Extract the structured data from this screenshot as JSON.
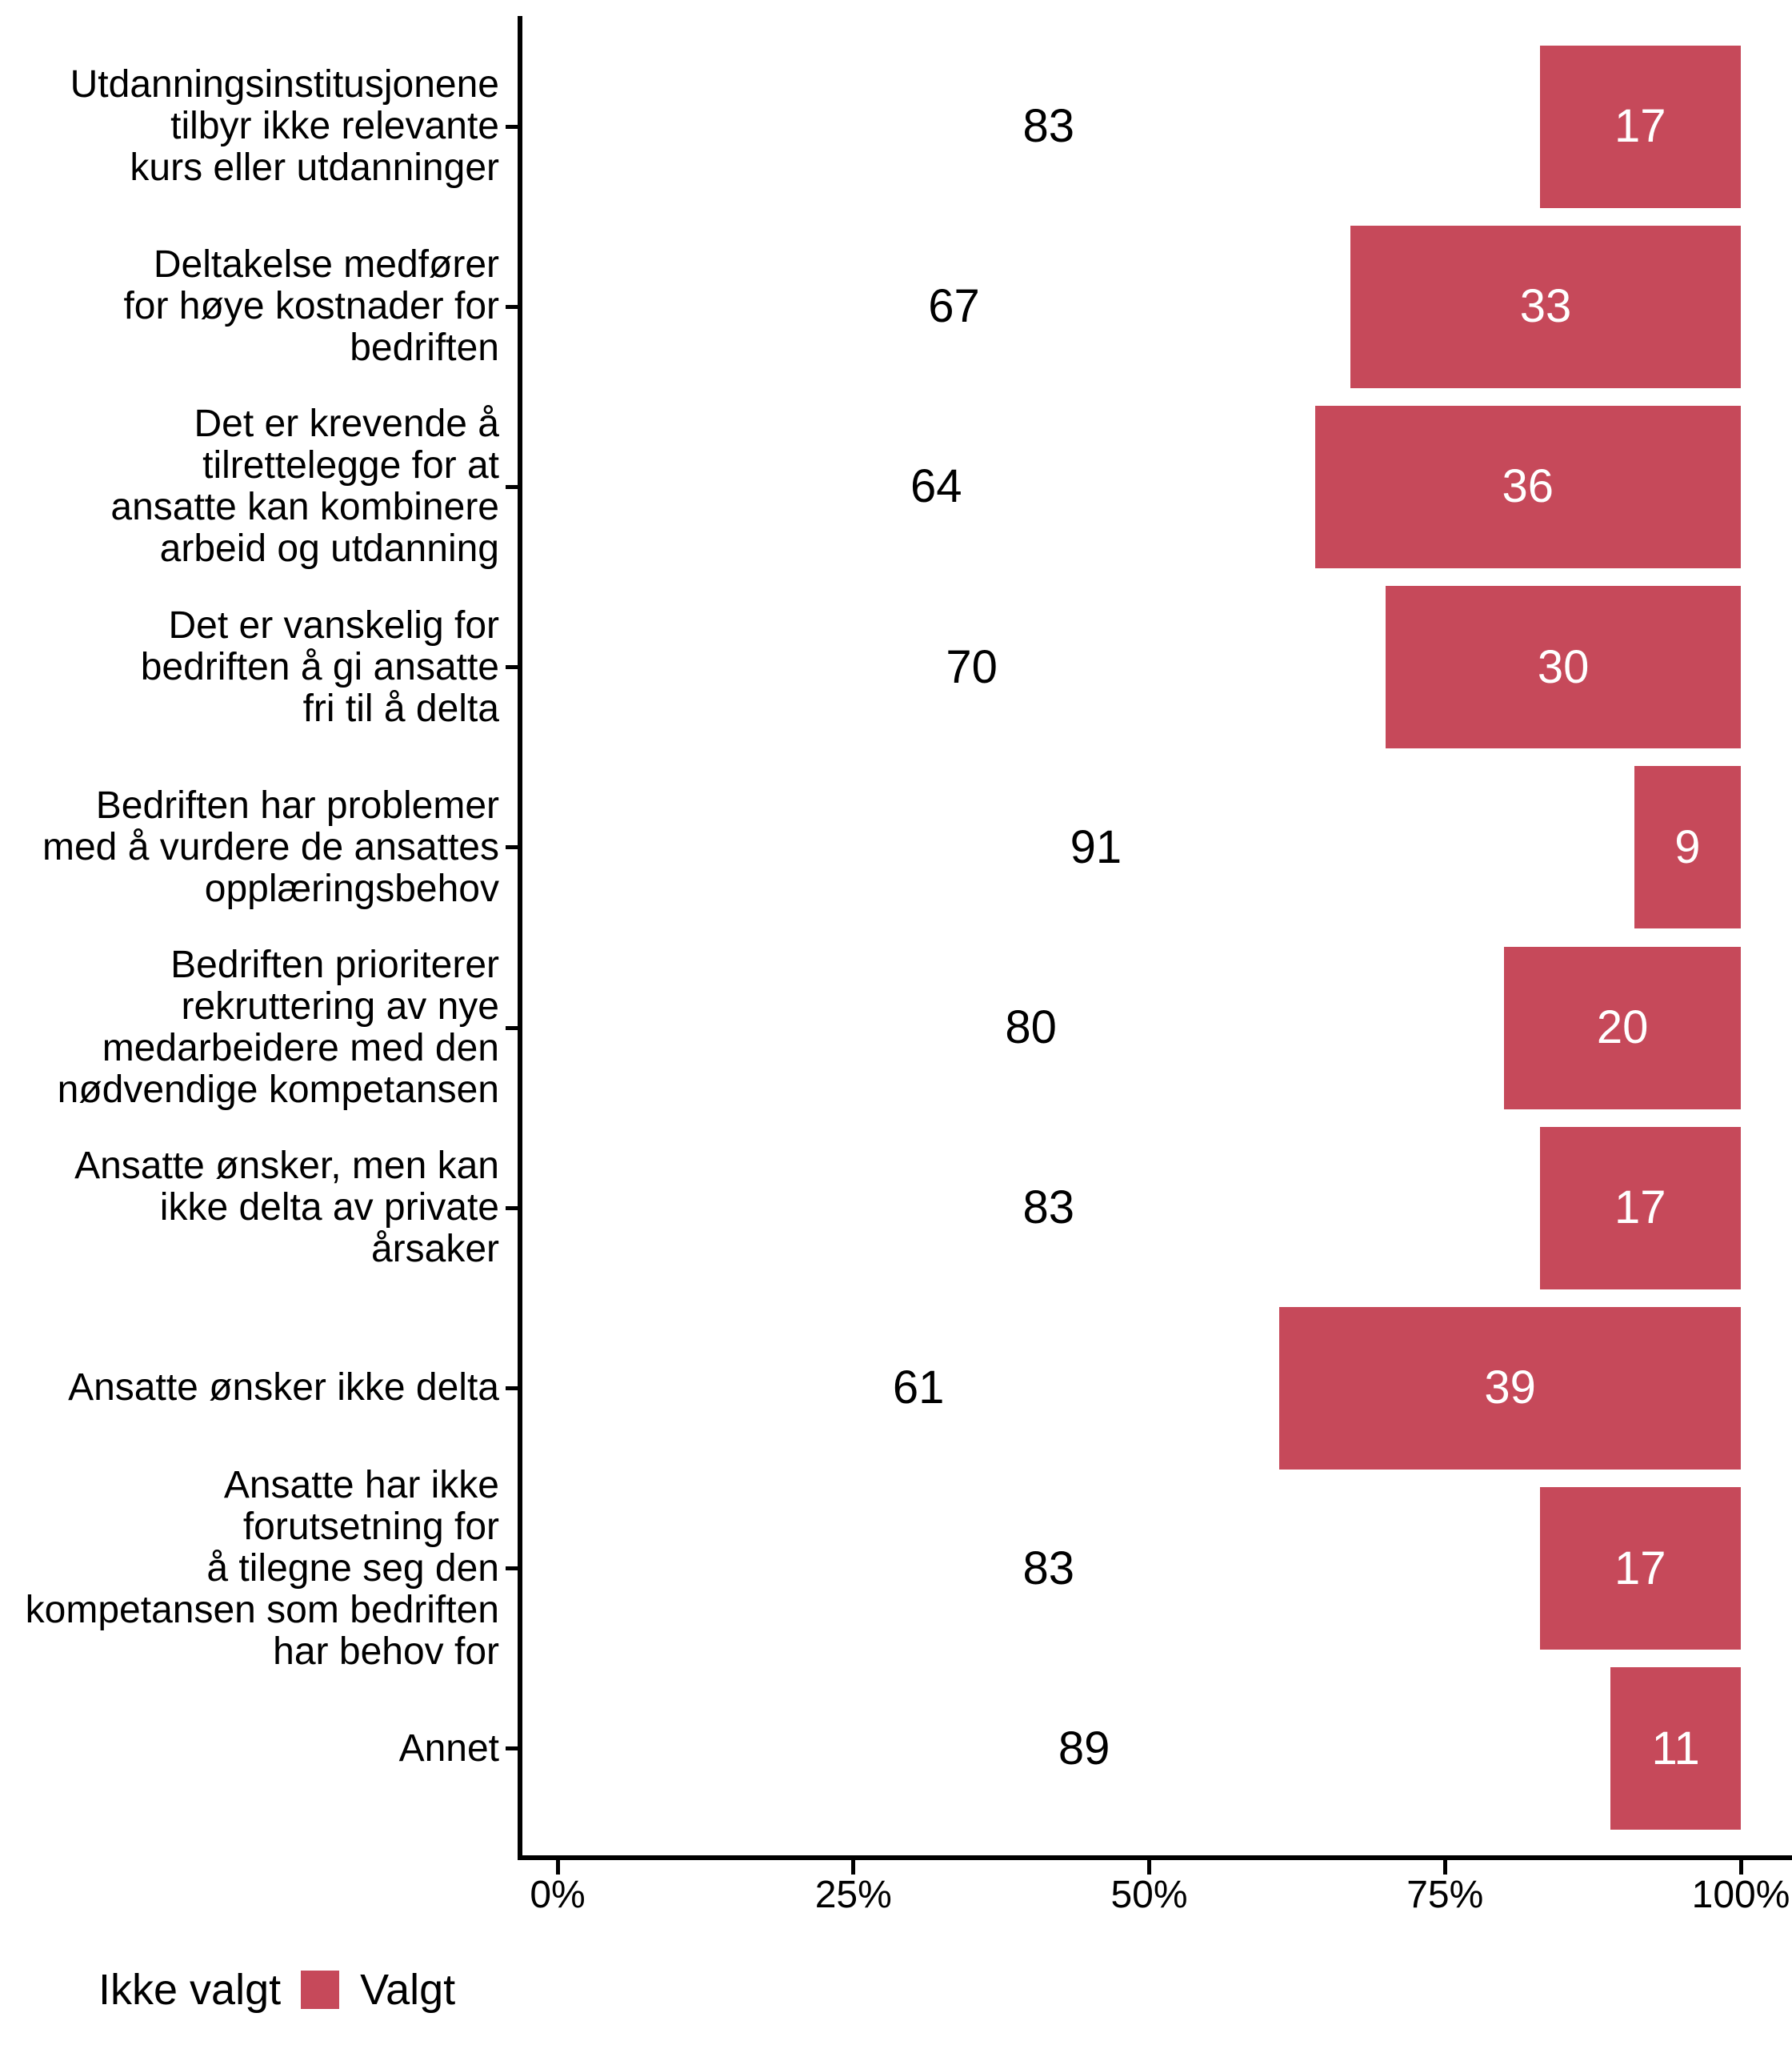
{
  "chart_data": {
    "type": "bar",
    "orientation": "horizontal",
    "stacked": true,
    "unit": "percent",
    "title": "",
    "xlabel": "",
    "ylabel": "",
    "x_axis": {
      "range": [
        0,
        100
      ],
      "tick_labels": [
        "0%",
        "25%",
        "50%",
        "75%",
        "100%"
      ],
      "grid": false
    },
    "series_names": [
      "Ikke valgt",
      "Valgt"
    ],
    "categories": [
      {
        "label_lines": [
          "Utdanningsinstitusjonene",
          "tilbyr ikke relevante",
          "kurs eller utdanninger"
        ],
        "ikke_valgt": 83,
        "valgt": 17
      },
      {
        "label_lines": [
          "Deltakelse medfører",
          "for høye kostnader for",
          "bedriften"
        ],
        "ikke_valgt": 67,
        "valgt": 33
      },
      {
        "label_lines": [
          "Det er krevende å",
          "tilrettelegge for at",
          "ansatte kan kombinere",
          "arbeid og utdanning"
        ],
        "ikke_valgt": 64,
        "valgt": 36
      },
      {
        "label_lines": [
          "Det er vanskelig for",
          "bedriften å gi ansatte",
          "fri til å delta"
        ],
        "ikke_valgt": 70,
        "valgt": 30
      },
      {
        "label_lines": [
          "Bedriften har problemer",
          "med å vurdere de ansattes",
          "opplæringsbehov"
        ],
        "ikke_valgt": 91,
        "valgt": 9
      },
      {
        "label_lines": [
          "Bedriften prioriterer",
          "rekruttering av nye",
          "medarbeidere med den",
          "nødvendige kompetansen"
        ],
        "ikke_valgt": 80,
        "valgt": 20
      },
      {
        "label_lines": [
          "Ansatte ønsker, men kan",
          "ikke delta av private",
          "årsaker"
        ],
        "ikke_valgt": 83,
        "valgt": 17
      },
      {
        "label_lines": [
          "Ansatte ønsker ikke delta"
        ],
        "ikke_valgt": 61,
        "valgt": 39
      },
      {
        "label_lines": [
          "Ansatte har ikke",
          "forutsetning for",
          "å tilegne seg den",
          "kompetansen som bedriften",
          "har behov for"
        ],
        "ikke_valgt": 83,
        "valgt": 17
      },
      {
        "label_lines": [
          "Annet"
        ],
        "ikke_valgt": 89,
        "valgt": 11
      }
    ],
    "legend": {
      "position": "bottom-left",
      "items": [
        {
          "label": "Ikke valgt",
          "color": "#FFFFFF"
        },
        {
          "label": "Valgt",
          "color": "#C6495A"
        }
      ]
    },
    "colors": {
      "valgt_bar": "#C6495A",
      "ikke_valgt_bar": "#FFFFFF",
      "axis": "#000000",
      "label_on_white": "#000000",
      "label_on_red": "#FFFFFF"
    }
  }
}
